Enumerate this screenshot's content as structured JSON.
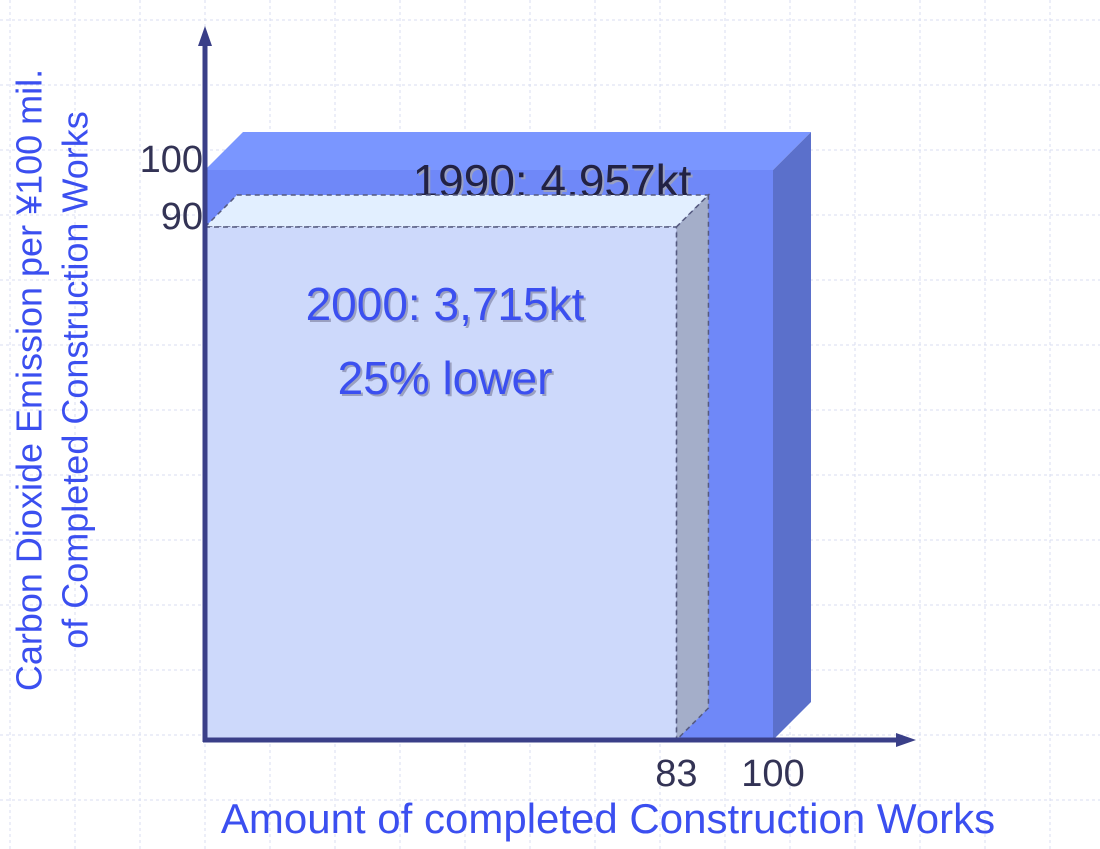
{
  "chart_data": {
    "type": "box3d",
    "xlabel": "Amount of completed Construction Works",
    "ylabel": [
      "Carbon Dioxide Emission per ¥100 mil.",
      "of Completed Construction Works"
    ],
    "xlim": [
      0,
      100
    ],
    "ylim": [
      0,
      100
    ],
    "xticks": [
      83,
      100
    ],
    "yticks": [
      90,
      100
    ],
    "series": [
      {
        "x": 100,
        "y": 100,
        "color": "#6f88f8",
        "labels": [
          "1990: 4,957kt"
        ],
        "label_color": "#222244"
      },
      {
        "x": 83,
        "y": 90,
        "color": "#cdd9fb",
        "labels": [
          "2000: 3,715kt",
          "25% lower"
        ],
        "label_color": "#3b4ff0"
      }
    ]
  }
}
